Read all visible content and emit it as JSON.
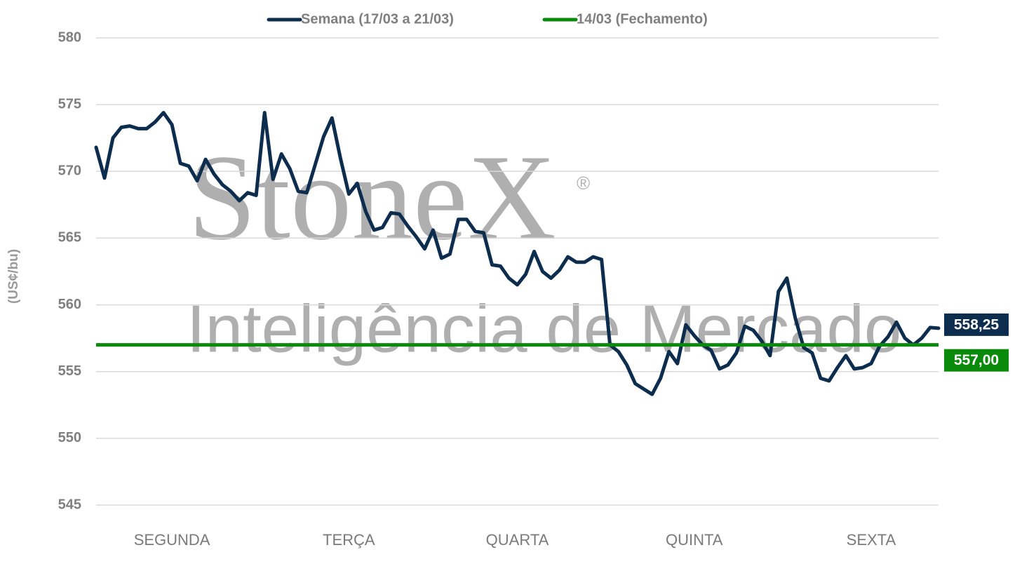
{
  "chart_data": {
    "type": "line",
    "y_label": "(US¢/bu)",
    "watermark": {
      "brand": "StoneX",
      "registered": "®",
      "tagline": "Inteligência de Mercado"
    },
    "categories": [
      null,
      null,
      null,
      null,
      null,
      null,
      null,
      null,
      null,
      "SEGUNDA",
      null,
      null,
      null,
      null,
      null,
      null,
      null,
      null,
      null,
      null,
      null,
      null,
      null,
      null,
      null,
      null,
      null,
      null,
      null,
      null,
      "TERÇA",
      null,
      null,
      null,
      null,
      null,
      null,
      null,
      null,
      null,
      null,
      null,
      null,
      null,
      null,
      null,
      null,
      null,
      null,
      null,
      "QUARTA",
      null,
      null,
      null,
      null,
      null,
      null,
      null,
      null,
      null,
      null,
      null,
      null,
      null,
      null,
      null,
      null,
      null,
      null,
      null,
      null,
      "QUINTA",
      null,
      null,
      null,
      null,
      null,
      null,
      null,
      null,
      null,
      null,
      null,
      null,
      null,
      null,
      null,
      null,
      null,
      null,
      null,
      null,
      "SEXTA",
      null,
      null,
      null,
      null,
      null,
      null,
      null,
      null
    ],
    "series": [
      {
        "name": "Semana (17/03 a 21/03)",
        "color": "#0d2d4f",
        "last_value_label": "558,25",
        "values": [
          571.8,
          569.5,
          572.5,
          573.3,
          573.4,
          573.2,
          573.2,
          573.7,
          574.4,
          573.5,
          570.6,
          570.4,
          569.3,
          570.9,
          569.8,
          569,
          568.5,
          567.8,
          568.4,
          568.2,
          574.4,
          569.4,
          571.3,
          570.2,
          568.5,
          568.4,
          570.5,
          572.6,
          574,
          571,
          568.3,
          569.1,
          567,
          565.6,
          565.8,
          566.9,
          566.8,
          565.9,
          565.1,
          564.2,
          565.6,
          563.5,
          563.8,
          566.4,
          566.4,
          565.5,
          565.4,
          563,
          562.9,
          562,
          561.5,
          562.3,
          564,
          562.5,
          562,
          562.6,
          563.6,
          563.2,
          563.2,
          563.6,
          563.4,
          557,
          556.5,
          555.5,
          554.1,
          553.7,
          553.3,
          554.5,
          556.5,
          555.6,
          558.5,
          557.7,
          557,
          556.6,
          555.2,
          555.5,
          556.4,
          558.4,
          558.1,
          557.3,
          556.2,
          561,
          562,
          559,
          556.8,
          556.4,
          554.5,
          554.3,
          555.3,
          556.2,
          555.2,
          555.3,
          555.6,
          556.9,
          557.6,
          558.7,
          557.5,
          557,
          557.5,
          558.3,
          558.25
        ]
      }
    ],
    "reference_lines": [
      {
        "name": "14/03 (Fechamento)",
        "color": "#0a8a0a",
        "value": 557,
        "value_label": "557,00"
      }
    ],
    "ylim": [
      545,
      580
    ],
    "yticks": [
      545,
      550,
      555,
      560,
      565,
      570,
      575,
      580
    ],
    "grid": true
  }
}
